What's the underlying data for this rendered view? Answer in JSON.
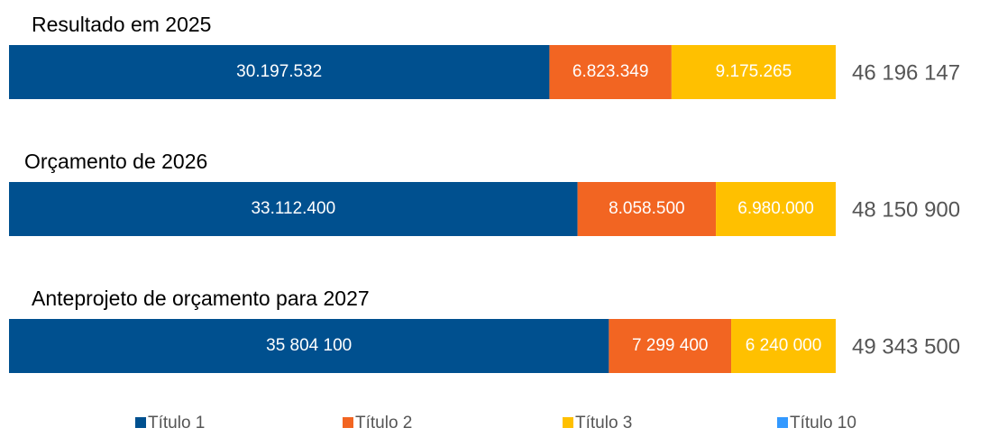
{
  "chart_data": {
    "type": "bar",
    "orientation": "horizontal",
    "stack": "percent",
    "categories": [
      "Resultado em 2025",
      "Orçamento de 2026",
      "Anteprojeto de orçamento para 2027"
    ],
    "series": [
      {
        "name": "Título 1",
        "color": "#00508f",
        "values": [
          30197532,
          33112400,
          35804100
        ],
        "value_labels": [
          "30.197.532",
          "33.112.400",
          "35 804 100"
        ]
      },
      {
        "name": "Título 2",
        "color": "#f26522",
        "values": [
          6823349,
          8058500,
          7299400
        ],
        "value_labels": [
          "6.823.349",
          "8.058.500",
          "7 299 400"
        ]
      },
      {
        "name": "Título 3",
        "color": "#ffc000",
        "values": [
          9175265,
          6980000,
          6240000
        ],
        "value_labels": [
          "9.175.265",
          "6.980.000",
          "6 240 000"
        ]
      },
      {
        "name": "Título 10",
        "color": "#3399ff",
        "values": [
          null,
          null,
          null
        ]
      }
    ],
    "totals": [
      46196147,
      48150900,
      49343500
    ],
    "total_labels": [
      "46 196 147",
      "48 150 900",
      "49 343 500"
    ],
    "legend": "bottom"
  }
}
